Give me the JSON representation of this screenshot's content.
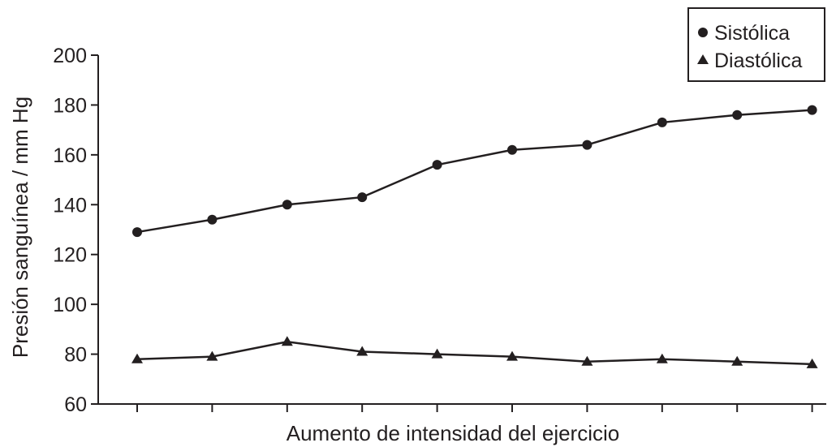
{
  "chart_data": {
    "type": "line",
    "xlabel": "Aumento de intensidad del ejercicio",
    "ylabel": "Presión sanguínea / mm Hg",
    "ylim": [
      60,
      200
    ],
    "yticks": [
      60,
      80,
      100,
      120,
      140,
      160,
      180,
      200
    ],
    "x": [
      1,
      2,
      3,
      4,
      5,
      6,
      7,
      8,
      9,
      10
    ],
    "xtick_labels_shown": false,
    "grid": false,
    "legend_position": "top-right",
    "series": [
      {
        "name": "Sistólica",
        "marker": "circle",
        "values": [
          129,
          134,
          140,
          143,
          156,
          162,
          164,
          173,
          176,
          178
        ]
      },
      {
        "name": "Diastólica",
        "marker": "triangle",
        "values": [
          78,
          79,
          85,
          81,
          80,
          79,
          77,
          78,
          77,
          76
        ]
      }
    ],
    "colors": {
      "line": "#231f20",
      "marker": "#231f20"
    }
  }
}
